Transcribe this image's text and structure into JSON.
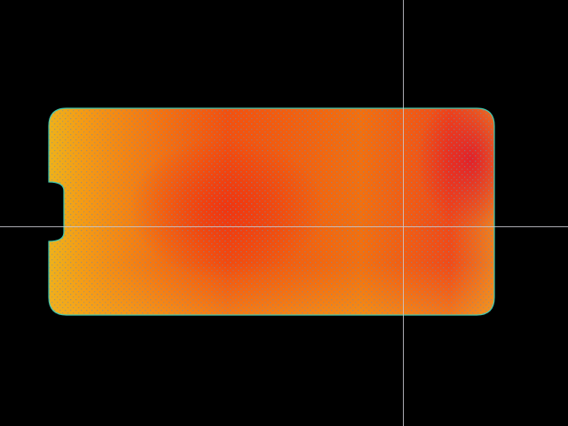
{
  "heatmap": {
    "background": "#000000",
    "colors": {
      "edge": "#e8c21a",
      "warm": "#f58a12",
      "hot": "#f0300f",
      "hottest": "#e0202a",
      "outline": "#40c8b0",
      "crosshair": "#c8c8d0",
      "grid_dots": "#7a8aa0"
    }
  }
}
